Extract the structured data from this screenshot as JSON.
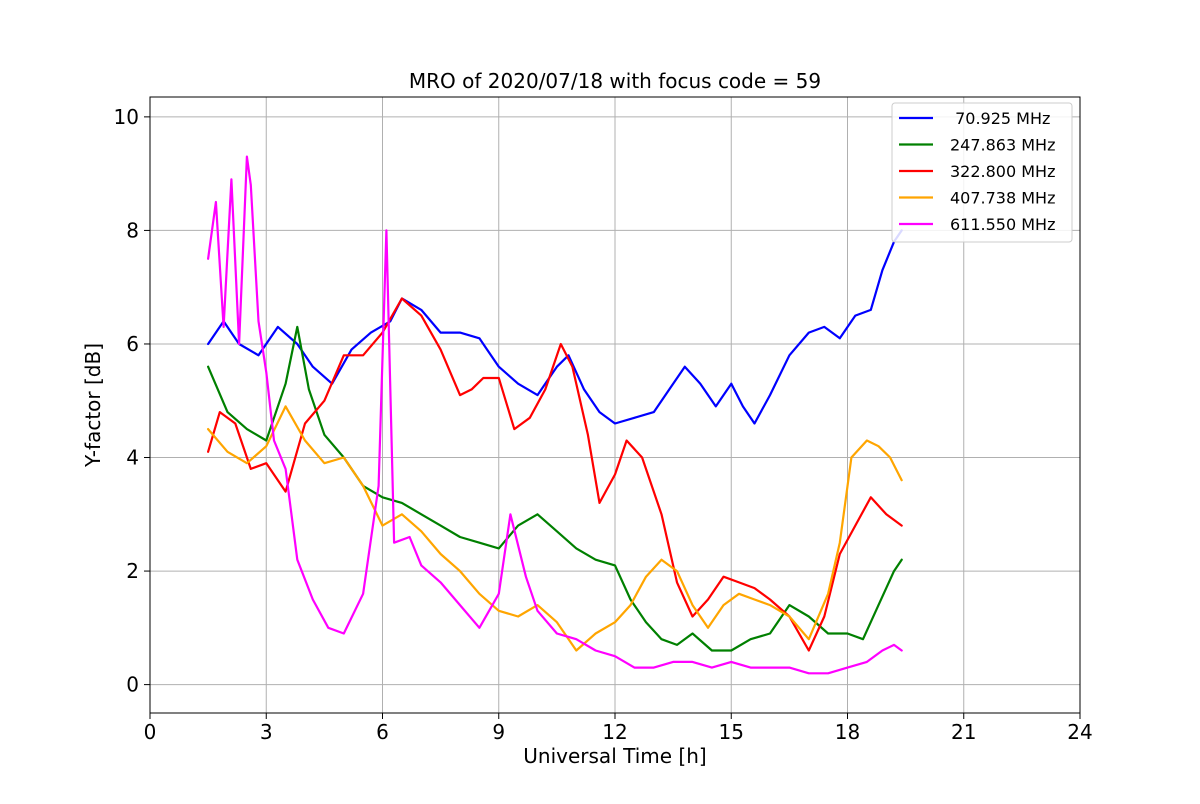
{
  "chart_data": {
    "type": "line",
    "title": "MRO of 2020/07/18 with focus code = 59",
    "xlabel": "Universal Time [h]",
    "ylabel": "Y-factor [dB]",
    "xlim": [
      0,
      24
    ],
    "ylim": [
      -0.5,
      10.35
    ],
    "xticks": [
      0,
      3,
      6,
      9,
      12,
      15,
      18,
      21,
      24
    ],
    "yticks": [
      0,
      2,
      4,
      6,
      8,
      10
    ],
    "grid": true,
    "legend_position": "top-right",
    "series": [
      {
        "name": " 70.925 MHz",
        "color": "#0000ff",
        "x": [
          1.5,
          1.9,
          2.3,
          2.8,
          3.3,
          3.8,
          4.2,
          4.7,
          5.2,
          5.7,
          6.2,
          6.5,
          7.0,
          7.5,
          8.0,
          8.5,
          8.7,
          9.0,
          9.5,
          10.0,
          10.5,
          10.8,
          11.2,
          11.6,
          12.0,
          12.5,
          13.0,
          13.4,
          13.8,
          14.2,
          14.6,
          15.0,
          15.3,
          15.6,
          16.0,
          16.5,
          17.0,
          17.4,
          17.8,
          18.2,
          18.6,
          18.9,
          19.2,
          19.4
        ],
        "y": [
          6.0,
          6.4,
          6.0,
          5.8,
          6.3,
          6.0,
          5.6,
          5.3,
          5.9,
          6.2,
          6.4,
          6.8,
          6.6,
          6.2,
          6.2,
          6.1,
          5.9,
          5.6,
          5.3,
          5.1,
          5.6,
          5.8,
          5.2,
          4.8,
          4.6,
          4.7,
          4.8,
          5.2,
          5.6,
          5.3,
          4.9,
          5.3,
          4.9,
          4.6,
          5.1,
          5.8,
          6.2,
          6.3,
          6.1,
          6.5,
          6.6,
          7.3,
          7.8,
          8.0
        ]
      },
      {
        "name": "247.863 MHz",
        "color": "#008000",
        "x": [
          1.5,
          2.0,
          2.5,
          3.0,
          3.5,
          3.8,
          4.1,
          4.5,
          5.0,
          5.5,
          6.0,
          6.5,
          7.0,
          7.5,
          8.0,
          8.5,
          9.0,
          9.5,
          10.0,
          10.5,
          11.0,
          11.5,
          12.0,
          12.4,
          12.8,
          13.2,
          13.6,
          14.0,
          14.5,
          15.0,
          15.5,
          16.0,
          16.5,
          17.0,
          17.5,
          18.0,
          18.4,
          18.8,
          19.2,
          19.4
        ],
        "y": [
          5.6,
          4.8,
          4.5,
          4.3,
          5.3,
          6.3,
          5.2,
          4.4,
          4.0,
          3.5,
          3.3,
          3.2,
          3.0,
          2.8,
          2.6,
          2.5,
          2.4,
          2.8,
          3.0,
          2.7,
          2.4,
          2.2,
          2.1,
          1.5,
          1.1,
          0.8,
          0.7,
          0.9,
          0.6,
          0.6,
          0.8,
          0.9,
          1.4,
          1.2,
          0.9,
          0.9,
          0.8,
          1.4,
          2.0,
          2.2
        ]
      },
      {
        "name": "322.800 MHz",
        "color": "#ff0000",
        "x": [
          1.5,
          1.8,
          2.2,
          2.6,
          3.0,
          3.5,
          4.0,
          4.5,
          5.0,
          5.5,
          6.0,
          6.5,
          7.0,
          7.5,
          8.0,
          8.3,
          8.6,
          9.0,
          9.4,
          9.8,
          10.2,
          10.6,
          10.9,
          11.3,
          11.6,
          12.0,
          12.3,
          12.7,
          13.2,
          13.6,
          14.0,
          14.4,
          14.8,
          15.2,
          15.6,
          16.0,
          16.5,
          17.0,
          17.4,
          17.8,
          18.2,
          18.6,
          19.0,
          19.4
        ],
        "y": [
          4.1,
          4.8,
          4.6,
          3.8,
          3.9,
          3.4,
          4.6,
          5.0,
          5.8,
          5.8,
          6.2,
          6.8,
          6.5,
          5.9,
          5.1,
          5.2,
          5.4,
          5.4,
          4.5,
          4.7,
          5.2,
          6.0,
          5.6,
          4.4,
          3.2,
          3.7,
          4.3,
          4.0,
          3.0,
          1.8,
          1.2,
          1.5,
          1.9,
          1.8,
          1.7,
          1.5,
          1.2,
          0.6,
          1.2,
          2.3,
          2.8,
          3.3,
          3.0,
          2.8
        ]
      },
      {
        "name": "407.738 MHz",
        "color": "#ffa500",
        "x": [
          1.5,
          2.0,
          2.5,
          3.0,
          3.5,
          4.0,
          4.5,
          5.0,
          5.5,
          6.0,
          6.5,
          7.0,
          7.5,
          8.0,
          8.5,
          9.0,
          9.5,
          10.0,
          10.5,
          11.0,
          11.5,
          12.0,
          12.4,
          12.8,
          13.2,
          13.6,
          14.0,
          14.4,
          14.8,
          15.2,
          15.6,
          16.0,
          16.5,
          17.0,
          17.5,
          17.8,
          18.1,
          18.5,
          18.8,
          19.1,
          19.4
        ],
        "y": [
          4.5,
          4.1,
          3.9,
          4.2,
          4.9,
          4.3,
          3.9,
          4.0,
          3.5,
          2.8,
          3.0,
          2.7,
          2.3,
          2.0,
          1.6,
          1.3,
          1.2,
          1.4,
          1.1,
          0.6,
          0.9,
          1.1,
          1.4,
          1.9,
          2.2,
          2.0,
          1.4,
          1.0,
          1.4,
          1.6,
          1.5,
          1.4,
          1.2,
          0.8,
          1.6,
          2.5,
          4.0,
          4.3,
          4.2,
          4.0,
          3.6
        ]
      },
      {
        "name": "611.550 MHz",
        "color": "#ff00ff",
        "x": [
          1.5,
          1.7,
          1.9,
          2.1,
          2.3,
          2.5,
          2.6,
          2.8,
          3.0,
          3.2,
          3.5,
          3.8,
          4.2,
          4.6,
          5.0,
          5.5,
          5.9,
          6.1,
          6.3,
          6.7,
          7.0,
          7.5,
          8.0,
          8.5,
          9.0,
          9.3,
          9.7,
          10.0,
          10.5,
          11.0,
          11.5,
          12.0,
          12.5,
          13.0,
          13.5,
          14.0,
          14.5,
          15.0,
          15.5,
          16.0,
          16.5,
          17.0,
          17.5,
          18.0,
          18.5,
          18.9,
          19.2,
          19.4
        ],
        "y": [
          7.5,
          8.5,
          6.3,
          8.9,
          6.0,
          9.3,
          8.8,
          6.4,
          5.5,
          4.3,
          3.8,
          2.2,
          1.5,
          1.0,
          0.9,
          1.6,
          3.5,
          8.0,
          2.5,
          2.6,
          2.1,
          1.8,
          1.4,
          1.0,
          1.6,
          3.0,
          1.9,
          1.3,
          0.9,
          0.8,
          0.6,
          0.5,
          0.3,
          0.3,
          0.4,
          0.4,
          0.3,
          0.4,
          0.3,
          0.3,
          0.3,
          0.2,
          0.2,
          0.3,
          0.4,
          0.6,
          0.7,
          0.6
        ]
      }
    ]
  }
}
